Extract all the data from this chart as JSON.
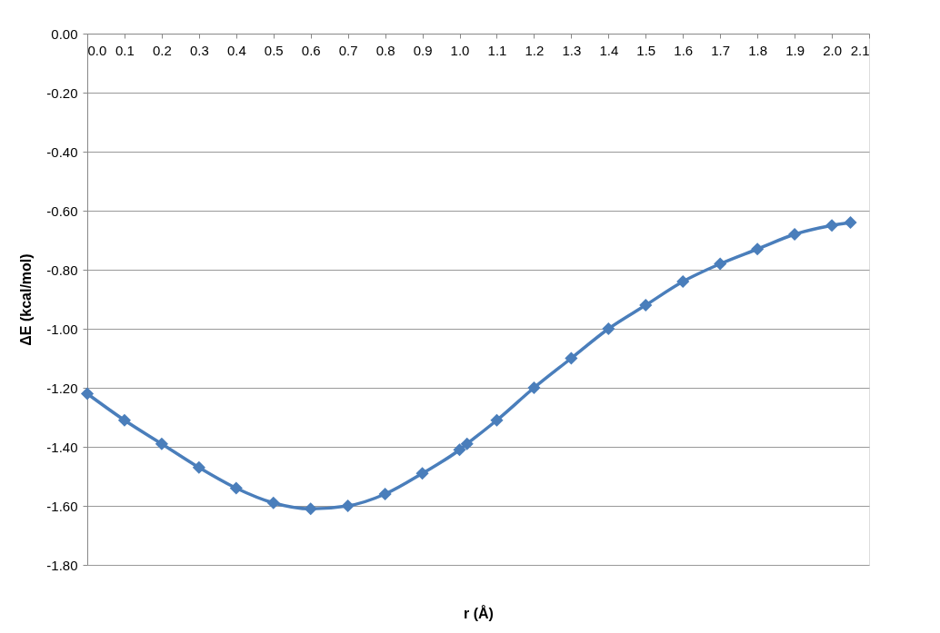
{
  "chart_data": {
    "type": "line",
    "xlabel": "r (Å)",
    "ylabel": "ΔE (kcal/mol)",
    "x": [
      0.0,
      0.1,
      0.2,
      0.3,
      0.4,
      0.5,
      0.6,
      0.7,
      0.8,
      0.9,
      1.0,
      1.02,
      1.1,
      1.2,
      1.3,
      1.4,
      1.5,
      1.6,
      1.7,
      1.8,
      1.9,
      2.0,
      2.05
    ],
    "series": [
      {
        "color": "#4a7ebb",
        "values": [
          -1.22,
          -1.31,
          -1.39,
          -1.47,
          -1.54,
          -1.59,
          -1.61,
          -1.6,
          -1.56,
          -1.49,
          -1.41,
          -1.39,
          -1.31,
          -1.2,
          -1.1,
          -1.0,
          -0.92,
          -0.84,
          -0.78,
          -0.73,
          -0.68,
          -0.65,
          -0.64
        ]
      }
    ],
    "xlim": [
      0.0,
      2.1
    ],
    "xticks": [
      {
        "value": 0,
        "label": "0.0"
      },
      0.1,
      0.2,
      0.3,
      0.4,
      0.5,
      0.6,
      0.7,
      0.8,
      0.9,
      {
        "value": 1,
        "label": "1.0"
      },
      1.1,
      1.2,
      1.3,
      1.4,
      1.5,
      1.6,
      1.7,
      1.8,
      1.9,
      {
        "value": 2,
        "label": "2.0"
      },
      2.1
    ],
    "ylim": [
      -1.8,
      0.0
    ],
    "yticks": [
      {
        "value": 0,
        "label": "0.00"
      },
      {
        "value": -0.2,
        "label": "-0.20"
      },
      {
        "value": -0.4,
        "label": "-0.40"
      },
      {
        "value": -0.6,
        "label": "-0.60"
      },
      {
        "value": -0.8,
        "label": "-0.80"
      },
      {
        "value": -1.0,
        "label": "-1.00"
      },
      {
        "value": -1.2,
        "label": "-1.20"
      },
      {
        "value": -1.4,
        "label": "-1.40"
      },
      {
        "value": -1.6,
        "label": "-1.60"
      },
      {
        "value": -1.8,
        "label": "-1.80"
      }
    ],
    "grid": "y",
    "marker": "diamond",
    "line_style": "solid",
    "legend": false
  }
}
